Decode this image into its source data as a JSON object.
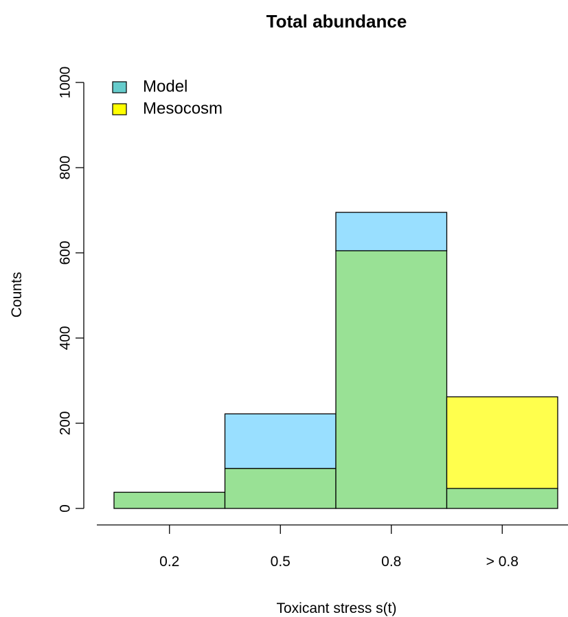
{
  "chart_data": {
    "type": "bar",
    "title": "Total abundance",
    "xlabel": "Toxicant stress s(t)",
    "ylabel": "Counts",
    "categories": [
      "0.2",
      "0.5",
      "0.8",
      "> 0.8"
    ],
    "ylim": [
      0,
      1000
    ],
    "yticks": [
      0,
      200,
      400,
      600,
      800,
      1000
    ],
    "series": [
      {
        "name": "Model",
        "values": [
          38,
          222,
          695,
          47
        ],
        "color": "#99DFFF"
      },
      {
        "name": "Mesocosm",
        "values": [
          38,
          94,
          605,
          262
        ],
        "color": "#FFFF4D"
      }
    ],
    "overlap_color": "#99E195",
    "legend": {
      "position": "top-left",
      "items": [
        {
          "label": "Model",
          "swatch_color": "#66CCCC"
        },
        {
          "label": "Mesocosm",
          "swatch_color": "#FFFF00"
        }
      ]
    },
    "grid": false
  }
}
